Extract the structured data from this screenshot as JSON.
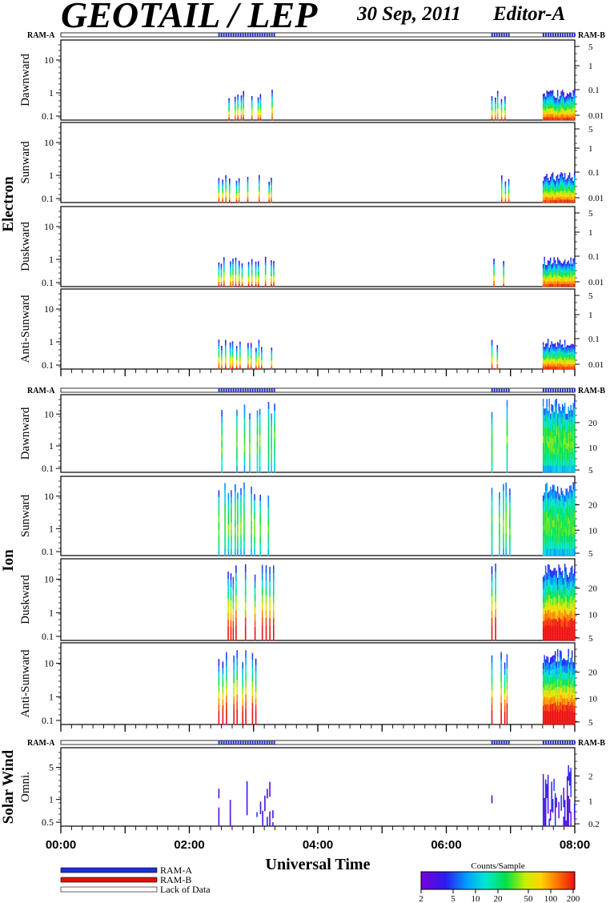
{
  "header": {
    "instrument": "GEOTAIL / LEP",
    "date": "30 Sep, 2011",
    "editor": "Editor-A"
  },
  "labels": {
    "ram_a": "RAM-A",
    "ram_b": "RAM-B",
    "groups": [
      "Electron",
      "Ion",
      "Solar Wind"
    ],
    "electron_panels": [
      "Dawnward",
      "Sunward",
      "Duskward",
      "Anti-Sunward"
    ],
    "ion_panels": [
      "Dawnward",
      "Sunward",
      "Duskward",
      "Anti-Sunward"
    ],
    "sw_panel": "Omni.",
    "xlabel": "Universal Time"
  },
  "legend": {
    "ram_a": "RAM-A",
    "ram_b": "RAM-B",
    "lack": "Lack of Data",
    "ram_a_color": "#1d2fd6",
    "ram_b_color": "#e01010"
  },
  "colorbar": {
    "title": "Counts/Sample",
    "ticks": [
      "2",
      "5",
      "10",
      "20",
      "50",
      "100",
      "200"
    ]
  },
  "chart_data": {
    "type": "heatmap",
    "x_ticks": [
      "00:00",
      "02:00",
      "04:00",
      "06:00",
      "08:00"
    ],
    "x_range_hours": [
      0,
      8
    ],
    "data_intervals_hours": [
      [
        2.45,
        3.32
      ],
      [
        6.7,
        6.98
      ],
      [
        7.5,
        8.0
      ]
    ],
    "ram_a_intervals_hours": [
      [
        2.45,
        3.32
      ],
      [
        6.7,
        6.98
      ],
      [
        7.5,
        8.0
      ]
    ],
    "electron": {
      "left_ticks": [
        "10",
        "1",
        "0.1"
      ],
      "right_ticks": [
        "5",
        "1",
        "0.1",
        "0.01"
      ]
    },
    "ion": {
      "left_ticks": [
        "10",
        "1",
        "0.1"
      ],
      "right_ticks_dawn_sun": [
        "20",
        "10",
        "5"
      ],
      "right_ticks_dusk_anti": [
        "20",
        "10",
        "5"
      ]
    },
    "solar_wind": {
      "left_ticks": [
        "5",
        "1",
        "0.5"
      ],
      "right_ticks": [
        "2",
        "1",
        "0.2"
      ]
    }
  }
}
